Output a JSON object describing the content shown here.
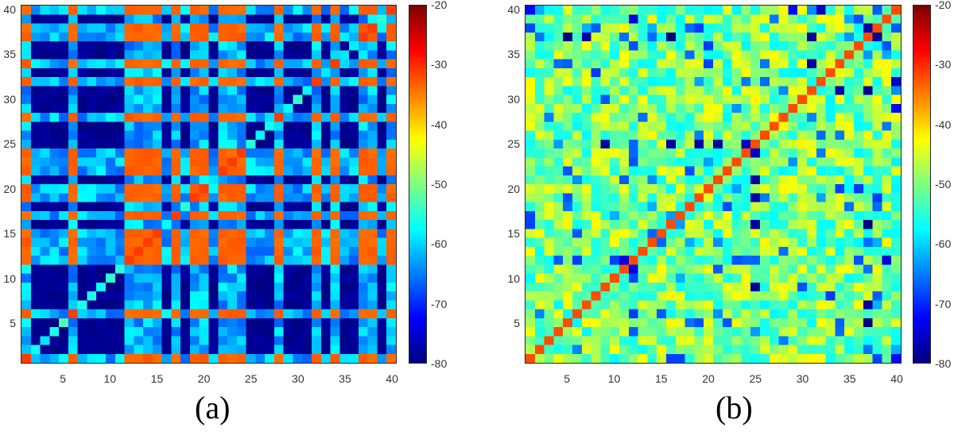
{
  "captions": {
    "a": "(a)",
    "b": "(b)"
  },
  "chart_data": [
    {
      "type": "heatmap",
      "title": "(a)",
      "xlabel": "",
      "ylabel": "",
      "size": 40,
      "xticks": [
        5,
        10,
        15,
        20,
        25,
        30,
        35,
        40
      ],
      "yticks": [
        5,
        10,
        15,
        20,
        25,
        30,
        35,
        40
      ],
      "colorbar": {
        "range": [
          -80,
          -20
        ],
        "ticks": [
          -20,
          -30,
          -40,
          -50,
          -60,
          -70,
          -80
        ],
        "colormap": "jet"
      },
      "group_orange_indices": [
        1,
        6,
        12,
        13,
        14,
        15,
        17,
        19,
        20,
        22,
        23,
        24,
        28,
        32,
        34,
        37,
        38,
        40
      ],
      "values": {
        "orange_x_orange": -34,
        "dark_x_dark": -78,
        "orange_x_dark": -62,
        "diagonal_orange": -31,
        "diagonal_dark": -56
      },
      "note": "Rows/cols in the orange group give orange blocks; remaining indices form dark-navy blocks; cross terms are blue/cyan (~-58 to -68)."
    },
    {
      "type": "heatmap",
      "title": "(b)",
      "xlabel": "",
      "ylabel": "",
      "size": 40,
      "xticks": [
        5,
        10,
        15,
        20,
        25,
        30,
        35,
        40
      ],
      "yticks": [
        5,
        10,
        15,
        20,
        25,
        30,
        35,
        40
      ],
      "colorbar": {
        "range": [
          -80,
          -20
        ],
        "ticks": [
          -20,
          -30,
          -40,
          -50,
          -60,
          -70,
          -80
        ],
        "colormap": "jet"
      },
      "diagonal_value": -32,
      "background_range": [
        -58,
        -42
      ],
      "strong_low_cells": [
        [
          25,
          9,
          -78
        ],
        [
          25,
          16,
          -78
        ],
        [
          25,
          19,
          -78
        ],
        [
          25,
          24,
          -76
        ],
        [
          24,
          25,
          -76
        ],
        [
          37,
          5,
          -80
        ],
        [
          37,
          16,
          -80
        ],
        [
          37,
          31,
          -79
        ],
        [
          38,
          37,
          -78
        ],
        [
          11,
          12,
          -74
        ],
        [
          12,
          11,
          -74
        ],
        [
          31,
          34,
          -78
        ],
        [
          21,
          25,
          -78
        ],
        [
          29,
          40,
          -72
        ],
        [
          7,
          37,
          -78
        ],
        [
          12,
          39,
          -75
        ],
        [
          1,
          40,
          -72
        ],
        [
          40,
          32,
          -76
        ]
      ],
      "low_rows_cols": [
        7,
        25,
        11,
        12,
        37
      ],
      "note": "Symmetric matrix; diagonal orange (~-32); off-diagonal mostly yellow/green/cyan (-42 to -58) with scattered blue cells."
    }
  ]
}
